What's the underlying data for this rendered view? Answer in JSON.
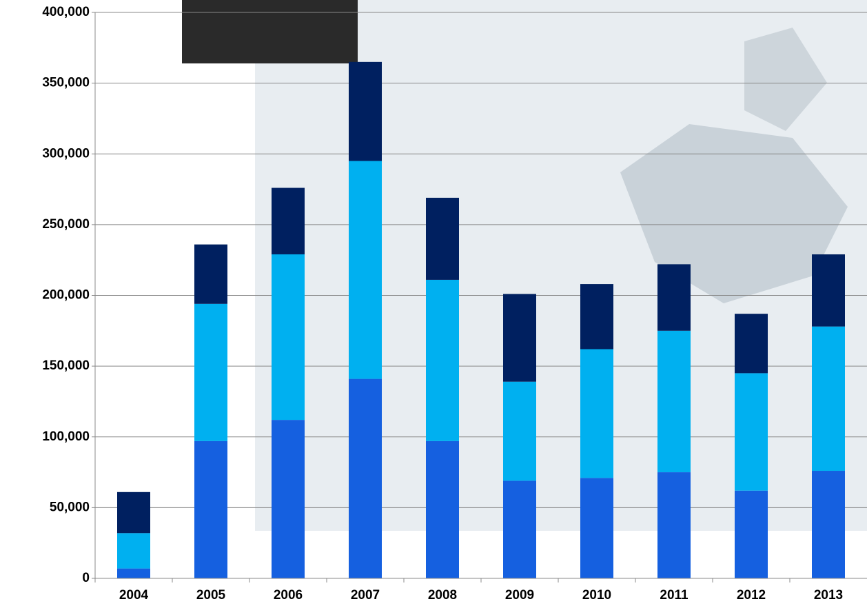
{
  "chart_data": {
    "type": "stacked-bar",
    "categories": [
      "2004",
      "2005",
      "2006",
      "2007",
      "2008",
      "2009",
      "2010",
      "2011",
      "2012",
      "2013"
    ],
    "series": [
      {
        "color": "#1560e0",
        "values": [
          7000,
          97000,
          112000,
          141000,
          97000,
          69000,
          71000,
          75000,
          62000,
          76000
        ]
      },
      {
        "color": "#00b0f0",
        "values": [
          25000,
          97000,
          117000,
          154000,
          114000,
          70000,
          91000,
          100000,
          83000,
          102000
        ]
      },
      {
        "color": "#002060",
        "values": [
          29000,
          42000,
          47000,
          70000,
          58000,
          62000,
          46000,
          47000,
          42000,
          51000
        ]
      }
    ],
    "ylim": [
      0,
      400000
    ],
    "yticks": [
      {
        "value": 0,
        "label": "0"
      },
      {
        "value": 50000,
        "label": "50,000"
      },
      {
        "value": 100000,
        "label": "100,000"
      },
      {
        "value": 150000,
        "label": "150,000"
      },
      {
        "value": 200000,
        "label": "200,000"
      },
      {
        "value": 250000,
        "label": "250,000"
      },
      {
        "value": 300000,
        "label": "300,000"
      },
      {
        "value": 350000,
        "label": "350,000"
      },
      {
        "value": 400000,
        "label": "400,000"
      }
    ],
    "grid": true
  }
}
